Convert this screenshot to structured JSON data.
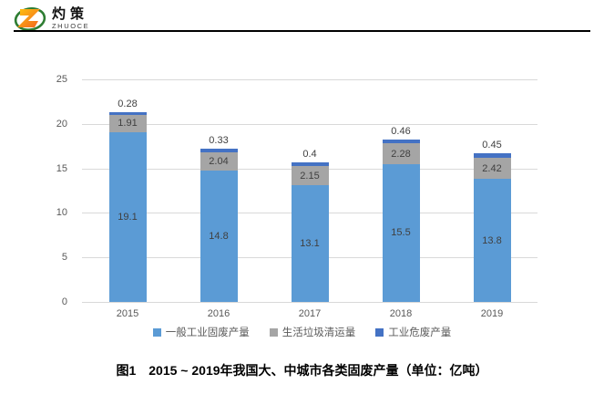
{
  "header": {
    "logo": {
      "icon": "zhuoce-z-logo",
      "brand_cn": "灼策",
      "brand_en": "ZHUOCE",
      "colors": {
        "green": "#2e7d32",
        "orange_light": "#ffc20e",
        "orange_dark": "#f26522"
      }
    }
  },
  "chart_data": {
    "type": "bar",
    "stacked": true,
    "categories": [
      "2015",
      "2016",
      "2017",
      "2018",
      "2019"
    ],
    "series": [
      {
        "name": "一般工业固废产量",
        "color": "#5b9bd5",
        "values": [
          19.1,
          14.8,
          13.1,
          15.5,
          13.8
        ]
      },
      {
        "name": "生活垃圾清运量",
        "color": "#a5a5a5",
        "values": [
          1.91,
          2.04,
          2.15,
          2.28,
          2.42
        ]
      },
      {
        "name": "工业危废产量",
        "color": "#4472c4",
        "values": [
          0.28,
          0.33,
          0.4,
          0.46,
          0.45
        ]
      }
    ],
    "yticks": [
      0,
      5,
      10,
      15,
      20,
      25
    ],
    "ylim": [
      0,
      25
    ],
    "grid": true,
    "legend_position": "bottom",
    "value_labels": true,
    "top_labels": [
      "0.28",
      "0.33",
      "0.4",
      "0.46",
      "0.45"
    ]
  },
  "caption": "图1　2015 ~ 2019年我国大、中城市各类固废产量（单位：亿吨）"
}
